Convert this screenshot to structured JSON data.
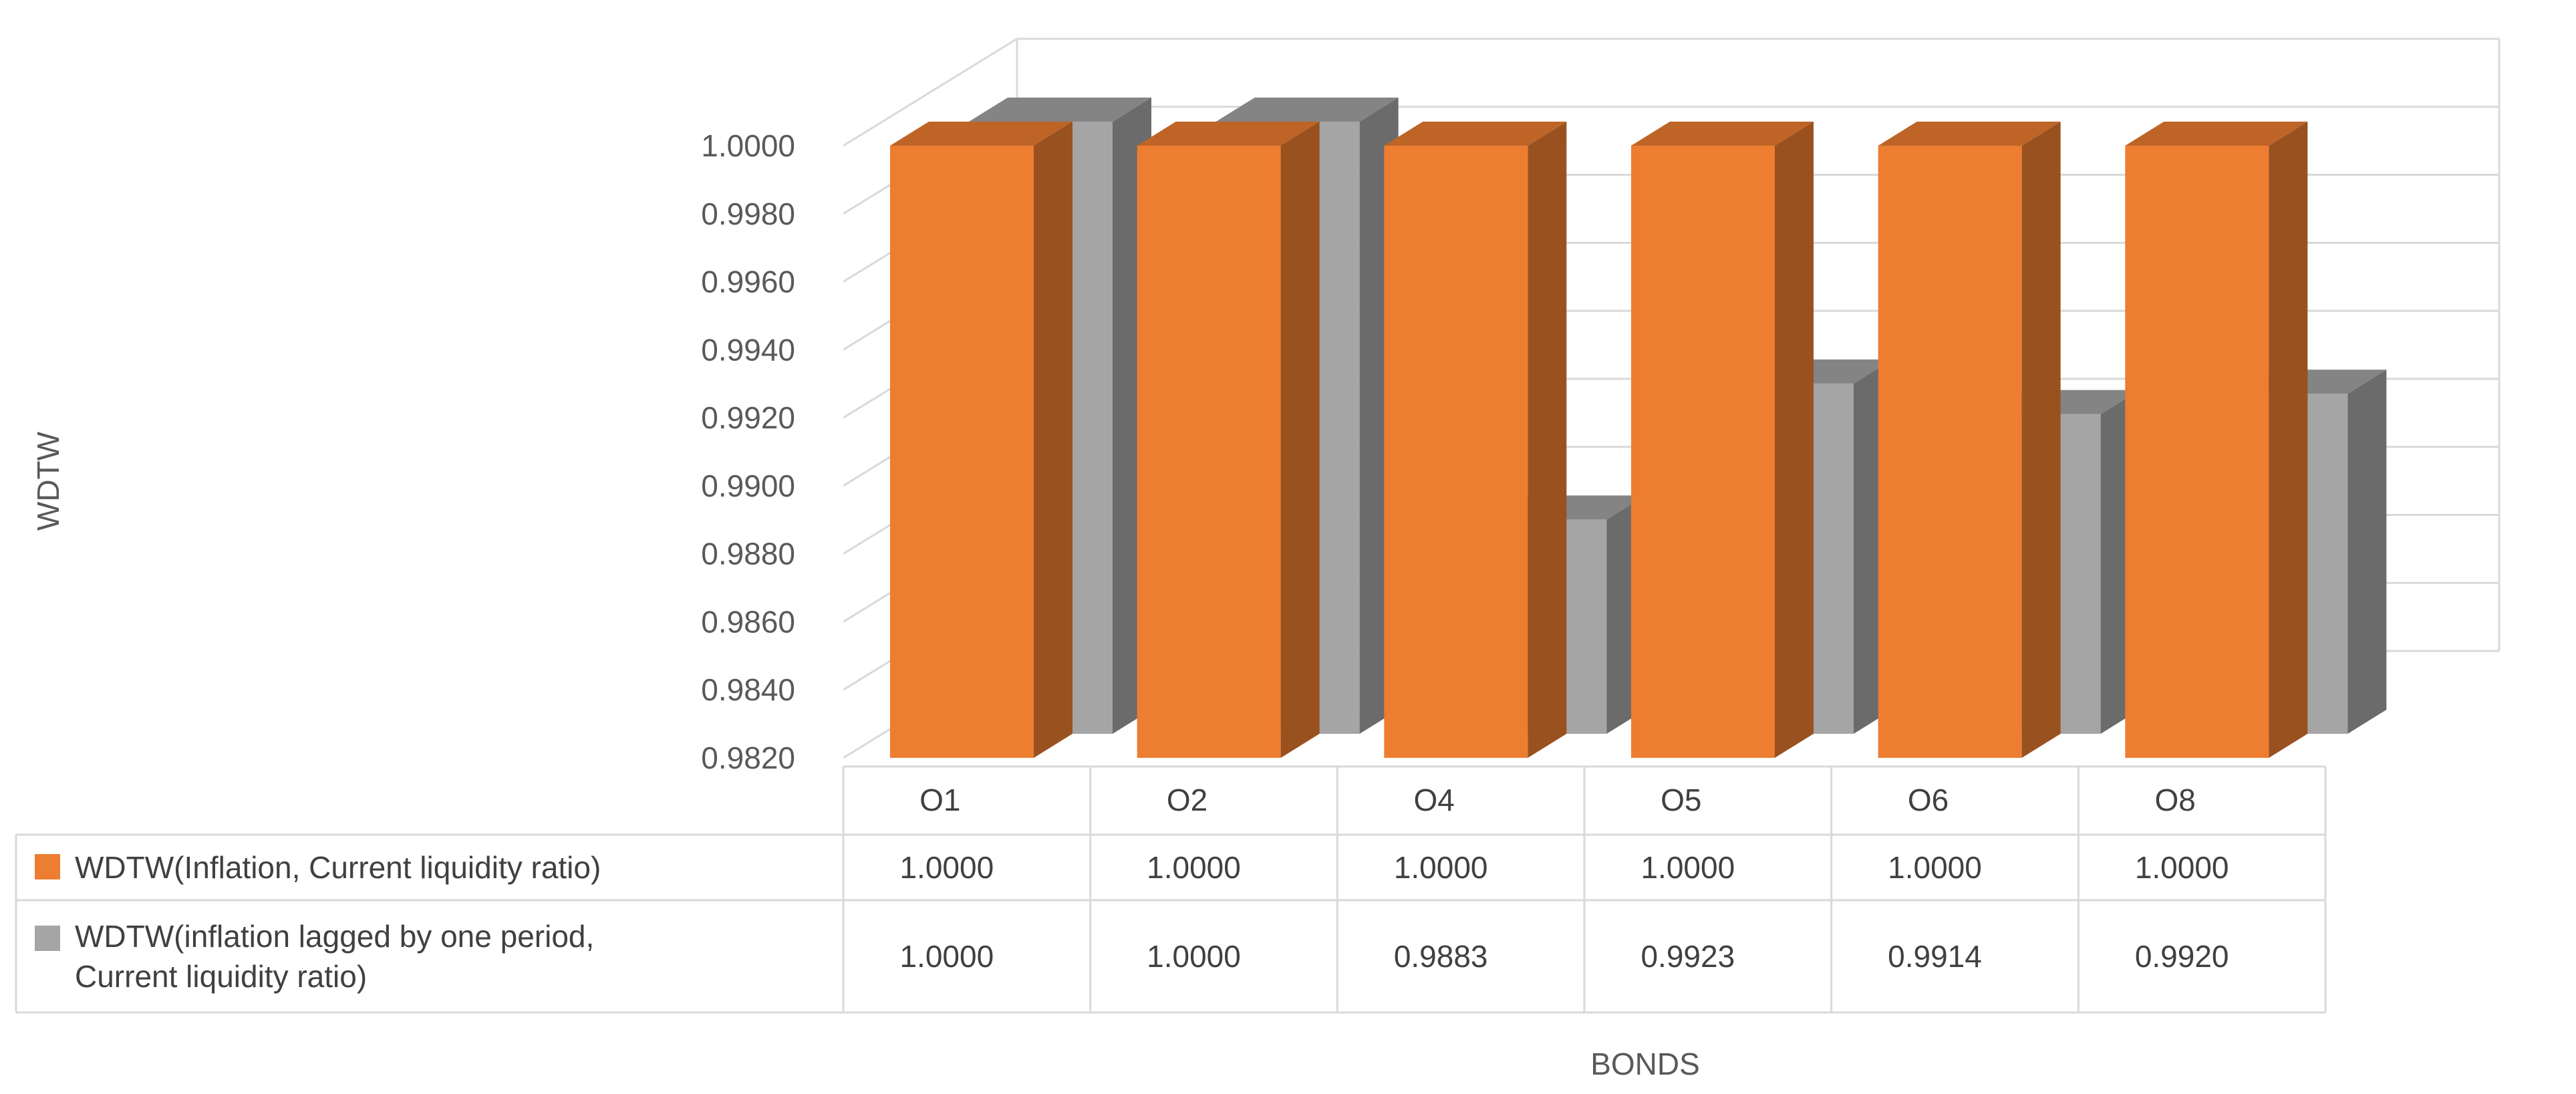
{
  "chart_data": {
    "type": "bar",
    "variant": "3d-clustered-column-with-data-table",
    "title": "",
    "xlabel": "BONDS",
    "ylabel": "WDTW",
    "ylim": [
      0.982,
      1.0
    ],
    "ytick_labels": [
      "0.9820",
      "0.9840",
      "0.9860",
      "0.9880",
      "0.9900",
      "0.9920",
      "0.9940",
      "0.9960",
      "0.9980",
      "1.0000"
    ],
    "categories": [
      "O1",
      "O2",
      "O4",
      "O5",
      "O6",
      "O8"
    ],
    "grid": true,
    "legend": "data-table-left",
    "series": [
      {
        "name": "WDTW(Inflation, Current liquidity ratio)",
        "name_lines": [
          "WDTW(Inflation, Current liquidity ratio)"
        ],
        "color": "#ED7D31",
        "values": [
          1.0,
          1.0,
          1.0,
          1.0,
          1.0,
          1.0
        ],
        "value_labels": [
          "1.0000",
          "1.0000",
          "1.0000",
          "1.0000",
          "1.0000",
          "1.0000"
        ]
      },
      {
        "name": "WDTW(inflation lagged by one period, Current liquidity ratio)",
        "name_lines": [
          "WDTW(inflation lagged by one period,",
          "Current liquidity ratio)"
        ],
        "color": "#A5A5A5",
        "values": [
          1.0,
          1.0,
          0.9883,
          0.9923,
          0.9914,
          0.992
        ],
        "value_labels": [
          "1.0000",
          "1.0000",
          "0.9883",
          "0.9923",
          "0.9914",
          "0.9920"
        ]
      }
    ]
  }
}
